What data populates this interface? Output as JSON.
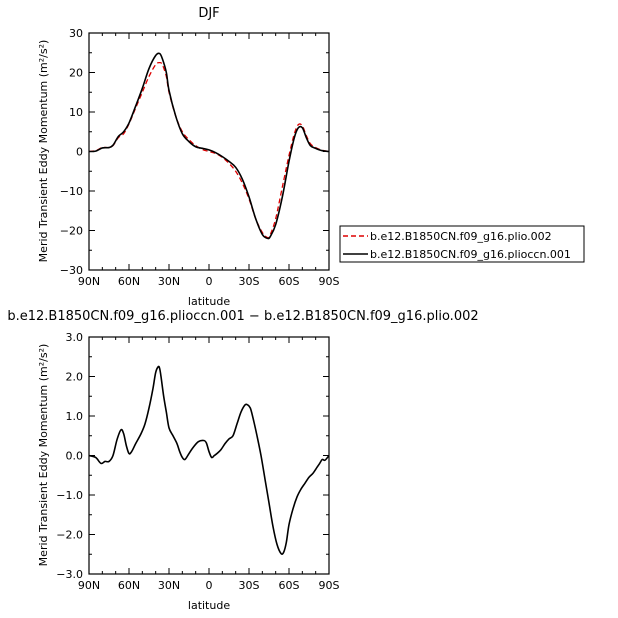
{
  "chart_data": [
    {
      "type": "line",
      "title": "DJF",
      "xlabel": "latitude",
      "ylabel": "Merid Transient Eddy Momentum (m²/s²)",
      "xlim": [
        90,
        -90
      ],
      "ylim": [
        -30,
        30
      ],
      "x_ticks": [
        90,
        60,
        30,
        0,
        -30,
        -60,
        -90
      ],
      "x_tick_labels": [
        "90N",
        "60N",
        "30N",
        "0",
        "30S",
        "60S",
        "90S"
      ],
      "y_ticks": [
        -30,
        -20,
        -10,
        0,
        10,
        20,
        30
      ],
      "y_tick_labels": [
        "−30",
        "−20",
        "−10",
        "0",
        "10",
        "20",
        "30"
      ],
      "legend": {
        "placement": "right",
        "entries": [
          {
            "label": "b.e12.B1850CN.f09_g16.plio.002",
            "color": "#dd0000",
            "dash": true
          },
          {
            "label": "b.e12.B1850CN.f09_g16.plioccn.001",
            "color": "#000000",
            "dash": false
          }
        ]
      },
      "series": [
        {
          "name": "b.e12.B1850CN.f09_g16.plio.002",
          "color": "#dd0000",
          "dash": true,
          "x": [
            90,
            85,
            80,
            75,
            72,
            68,
            64,
            60,
            55,
            50,
            45,
            40,
            37,
            35,
            32,
            30,
            25,
            20,
            15,
            10,
            5,
            0,
            -5,
            -10,
            -15,
            -20,
            -25,
            -30,
            -35,
            -40,
            -44,
            -46,
            -50,
            -55,
            -60,
            -64,
            -67,
            -70,
            -73,
            -76,
            -80,
            -85,
            -90
          ],
          "y": [
            0,
            0.2,
            1.0,
            1.0,
            1.5,
            3.5,
            4.5,
            7.0,
            11.0,
            15.0,
            19.0,
            22.0,
            22.5,
            22.0,
            19.0,
            15.0,
            9.0,
            5.0,
            3.0,
            1.5,
            0.5,
            0,
            -0.5,
            -1.5,
            -3.0,
            -5.0,
            -8.0,
            -12.0,
            -17.0,
            -20.5,
            -21.8,
            -21.0,
            -17.0,
            -9.0,
            -1.0,
            4.5,
            6.8,
            6.5,
            4.0,
            2.0,
            1.0,
            0.3,
            0
          ]
        },
        {
          "name": "b.e12.B1850CN.f09_g16.plioccn.001",
          "color": "#000000",
          "dash": false,
          "x": [
            90,
            85,
            80,
            75,
            72,
            68,
            64,
            60,
            55,
            50,
            45,
            40,
            37,
            35,
            32,
            30,
            25,
            20,
            15,
            10,
            5,
            0,
            -5,
            -10,
            -15,
            -20,
            -25,
            -30,
            -35,
            -40,
            -44,
            -46,
            -50,
            -55,
            -60,
            -64,
            -67,
            -70,
            -73,
            -76,
            -80,
            -85,
            -90
          ],
          "y": [
            0,
            0.1,
            0.9,
            1.0,
            1.6,
            3.8,
            5.0,
            7.2,
            11.5,
            16.0,
            21.0,
            24.3,
            24.8,
            23.5,
            20.0,
            15.5,
            9.0,
            4.5,
            2.5,
            1.2,
            0.8,
            0.4,
            -0.3,
            -1.3,
            -2.5,
            -4.0,
            -7.0,
            -11.5,
            -17.0,
            -21.0,
            -22.0,
            -21.5,
            -18.5,
            -11.5,
            -2.5,
            3.5,
            6.0,
            6.0,
            3.5,
            1.5,
            0.8,
            0.2,
            0
          ]
        }
      ]
    },
    {
      "type": "line",
      "title": "b.e12.B1850CN.f09_g16.plioccn.001 − b.e12.B1850CN.f09_g16.plio.002",
      "xlabel": "latitude",
      "ylabel": "Merid Transient Eddy Momentum (m²/s²)",
      "xlim": [
        90,
        -90
      ],
      "ylim": [
        -3.0,
        3.0
      ],
      "x_ticks": [
        90,
        60,
        30,
        0,
        -30,
        -60,
        -90
      ],
      "x_tick_labels": [
        "90N",
        "60N",
        "30N",
        "0",
        "30S",
        "60S",
        "90S"
      ],
      "y_ticks": [
        -3,
        -2,
        -1,
        0,
        1,
        2,
        3
      ],
      "y_tick_labels": [
        "−3.0",
        "−2.0",
        "−1.0",
        "0.0",
        "1.0",
        "2.0",
        "3.0"
      ],
      "series": [
        {
          "color": "#000000",
          "dash": false,
          "x": [
            90,
            85,
            81,
            78,
            75,
            72,
            69,
            66,
            64,
            62,
            60,
            58,
            55,
            51,
            48,
            45,
            42,
            40,
            38,
            37,
            36,
            34,
            32,
            30,
            27,
            24,
            22,
            20,
            18,
            15,
            12,
            8,
            4,
            2,
            0,
            -2,
            -4,
            -6,
            -9,
            -12,
            -15,
            -18,
            -21,
            -24,
            -27,
            -29,
            -31,
            -33,
            -36,
            -39,
            -42,
            -45,
            -48,
            -51,
            -54,
            -56,
            -58,
            -60,
            -63,
            -66,
            -69,
            -72,
            -75,
            -78,
            -81,
            -83,
            -85,
            -87,
            -90
          ],
          "y": [
            0,
            -0.05,
            -0.2,
            -0.15,
            -0.15,
            0.0,
            0.4,
            0.65,
            0.55,
            0.25,
            0.05,
            0.1,
            0.3,
            0.55,
            0.8,
            1.2,
            1.7,
            2.1,
            2.25,
            2.2,
            2.0,
            1.5,
            1.1,
            0.7,
            0.5,
            0.3,
            0.1,
            -0.05,
            -0.1,
            0.05,
            0.2,
            0.35,
            0.38,
            0.32,
            0.1,
            -0.05,
            0.0,
            0.05,
            0.15,
            0.3,
            0.42,
            0.5,
            0.8,
            1.1,
            1.28,
            1.28,
            1.2,
            0.95,
            0.5,
            0.0,
            -0.6,
            -1.2,
            -1.8,
            -2.25,
            -2.48,
            -2.45,
            -2.2,
            -1.75,
            -1.35,
            -1.05,
            -0.85,
            -0.7,
            -0.55,
            -0.45,
            -0.3,
            -0.2,
            -0.1,
            -0.12,
            0.0
          ]
        }
      ]
    }
  ]
}
